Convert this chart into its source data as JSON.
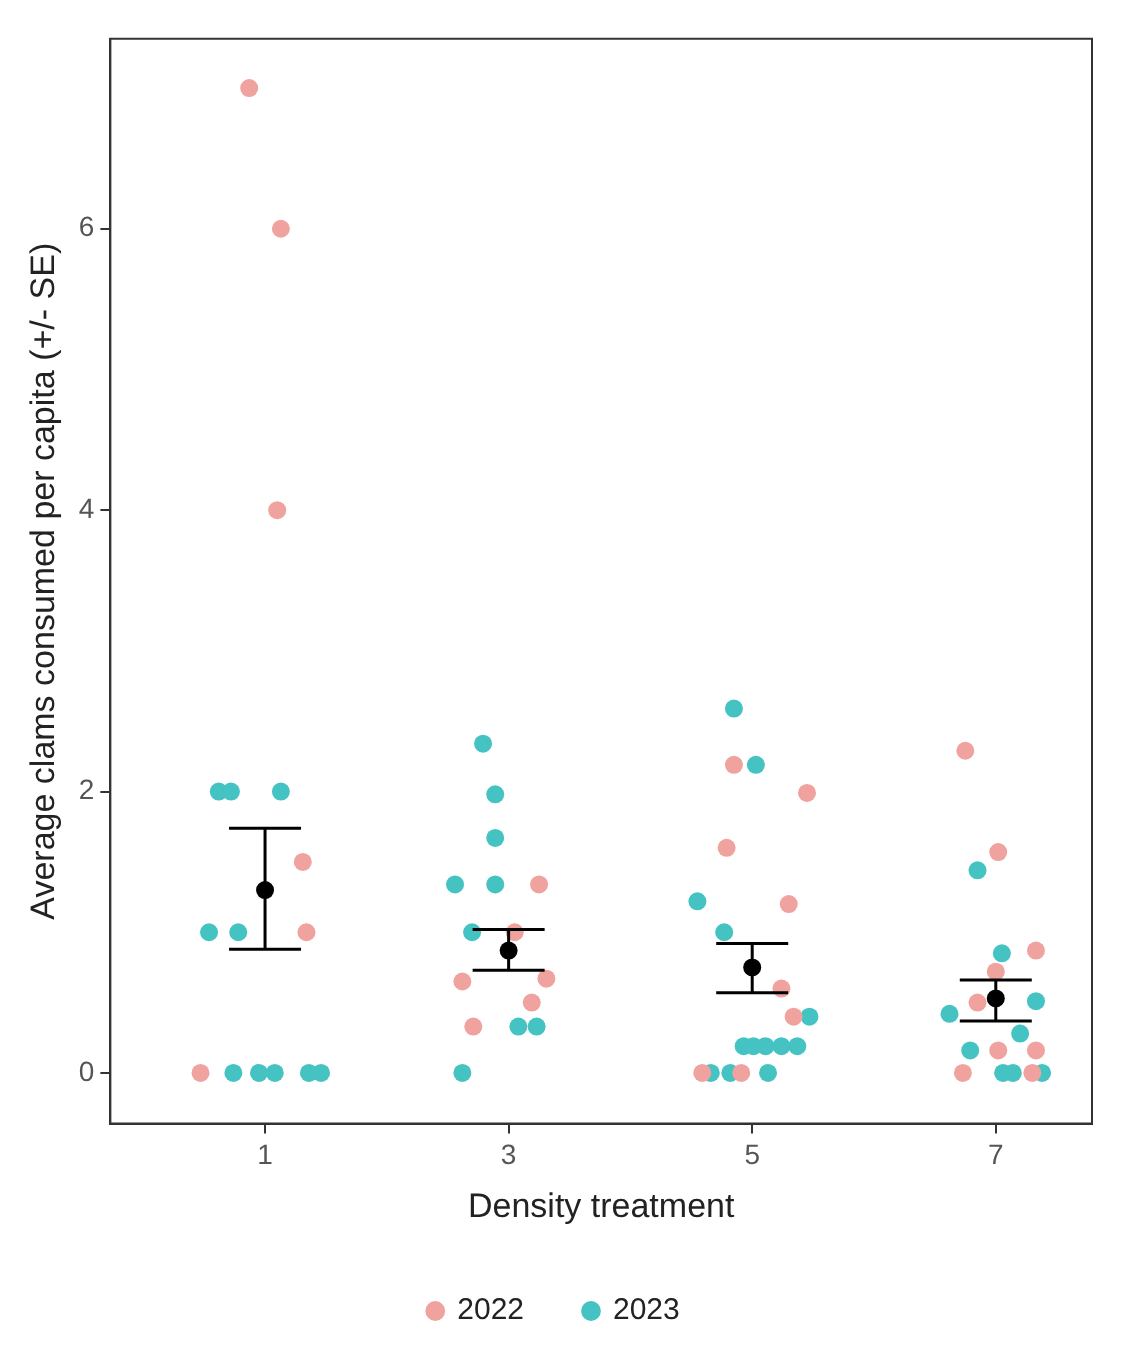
{
  "chart_data": {
    "type": "scatter",
    "xlabel": "Density treatment",
    "ylabel": "Average clams consumed per capita (+/- SE)",
    "xlim": [
      -0.27,
      7.79
    ],
    "xticks": [
      1,
      3,
      5,
      7
    ],
    "ylim": [
      -0.36,
      7.35
    ],
    "yticks": [
      0,
      2,
      4,
      6
    ],
    "grid": false,
    "legend": "bottom",
    "marker": "circle",
    "series": [
      {
        "name": "2022",
        "color": "#f0a39e",
        "x": [
          0.87,
          1.13,
          1.1,
          1.31,
          1.34,
          0.47,
          3.25,
          3.05,
          2.62,
          3.31,
          3.19,
          2.71,
          4.85,
          5.45,
          4.79,
          5.3,
          5.24,
          5.34,
          4.59,
          4.91,
          6.75,
          7.02,
          7.33,
          7.0,
          6.85,
          7.02,
          7.33,
          6.73,
          7.3
        ],
        "values": [
          7,
          6,
          4,
          1.5,
          1,
          0,
          1.34,
          1,
          0.65,
          0.67,
          0.5,
          0.33,
          2.19,
          1.99,
          1.6,
          1.2,
          0.6,
          0.4,
          0,
          0,
          2.29,
          1.57,
          0.87,
          0.72,
          0.5,
          0.16,
          0.16,
          0,
          0
        ]
      },
      {
        "name": "2023",
        "color": "#45c3c3",
        "x": [
          0.62,
          0.72,
          1.13,
          0.54,
          0.78,
          0.74,
          0.95,
          1.08,
          1.36,
          1.46,
          2.79,
          2.89,
          2.89,
          2.56,
          2.89,
          2.7,
          3.08,
          3.23,
          2.62,
          4.85,
          5.03,
          4.55,
          4.77,
          5.47,
          4.93,
          5.01,
          5.11,
          5.24,
          5.37,
          4.66,
          4.82,
          5.13,
          6.85,
          7.05,
          7.33,
          6.62,
          7.2,
          6.79,
          7.06,
          7.14,
          7.38
        ],
        "values": [
          2,
          2,
          2,
          1,
          1,
          0,
          0,
          0,
          0,
          0,
          2.34,
          1.98,
          1.67,
          1.34,
          1.34,
          1,
          0.33,
          0.33,
          0,
          2.59,
          2.19,
          1.22,
          1,
          0.4,
          0.19,
          0.19,
          0.19,
          0.19,
          0.19,
          0,
          0,
          0,
          1.44,
          0.85,
          0.51,
          0.42,
          0.28,
          0.16,
          0,
          0,
          0
        ]
      },
      {
        "color": "#000000",
        "x": [
          1,
          3,
          5,
          7
        ],
        "values": [
          1.3,
          0.87,
          0.75,
          0.53
        ],
        "errors": [
          [
            0.88,
            1.74
          ],
          [
            0.73,
            1.02
          ],
          [
            0.57,
            0.92
          ],
          [
            0.37,
            0.66
          ]
        ]
      }
    ]
  }
}
